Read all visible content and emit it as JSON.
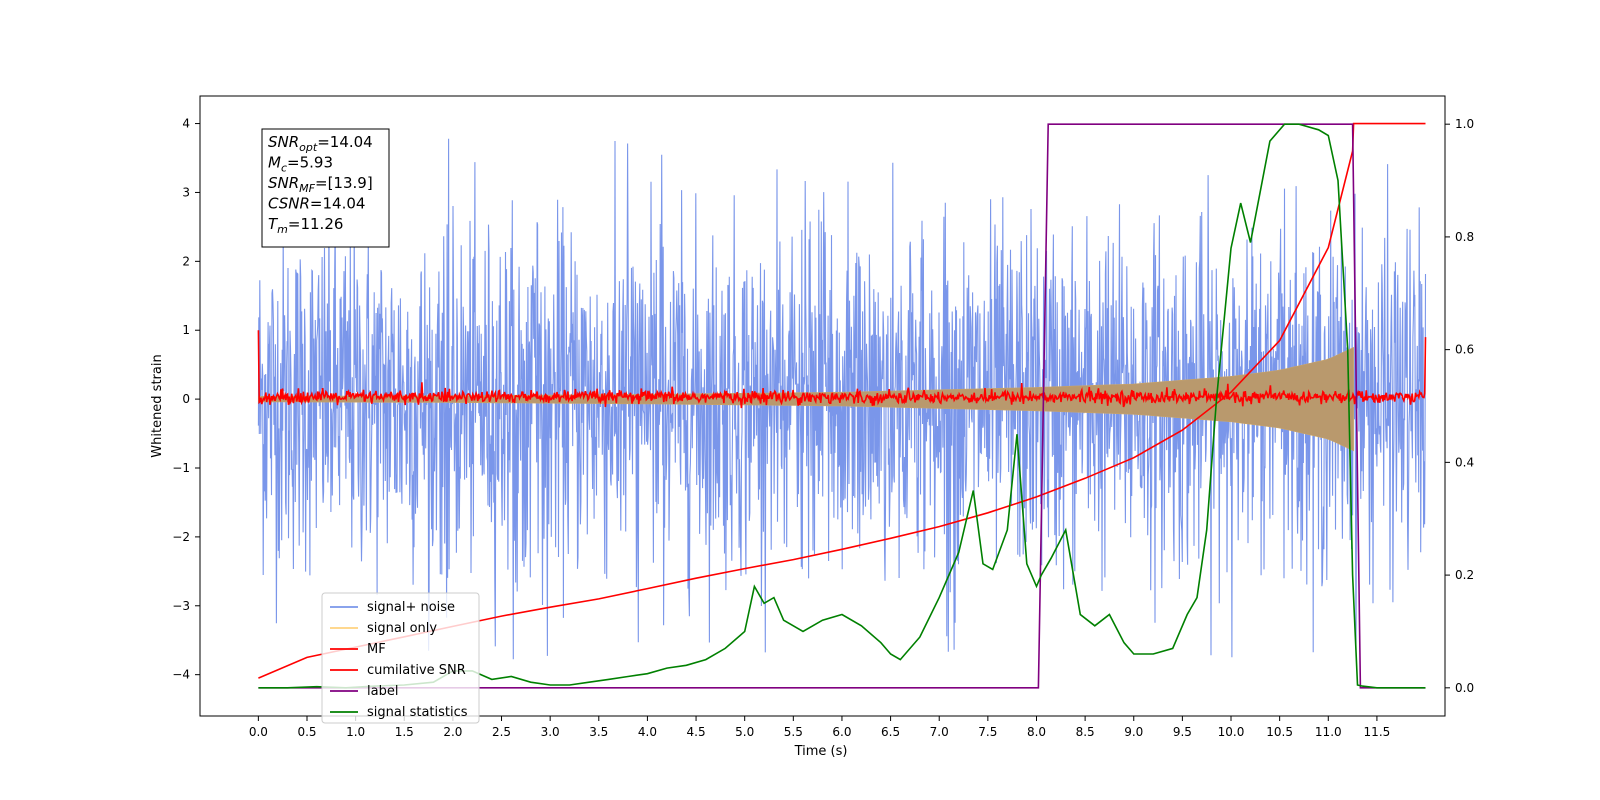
{
  "chart_data": {
    "type": "line",
    "title": "",
    "xlabel": "Time (s)",
    "ylabel": "Whitened strain",
    "xlim": [
      -0.6,
      12.2
    ],
    "ylim": [
      -4.6,
      4.4
    ],
    "y2lim": [
      -0.05,
      1.05
    ],
    "xticks": [
      "0.0",
      "0.5",
      "1.0",
      "1.5",
      "2.0",
      "2.5",
      "3.0",
      "3.5",
      "4.0",
      "4.5",
      "5.0",
      "5.5",
      "6.0",
      "6.5",
      "7.0",
      "7.5",
      "8.0",
      "8.5",
      "9.0",
      "9.5",
      "10.0",
      "10.5",
      "11.0",
      "11.5"
    ],
    "yticks": [
      "−4",
      "−3",
      "−2",
      "−1",
      "0",
      "1",
      "2",
      "3",
      "4"
    ],
    "y2ticks": [
      "0.0",
      "0.2",
      "0.4",
      "0.6",
      "0.8",
      "1.0"
    ],
    "grid": false,
    "legend_position": "bottom-left",
    "annotation": {
      "lines": [
        {
          "base": "SNR",
          "sub": "opt",
          "value": "=14.04"
        },
        {
          "base": "M",
          "sub": "c",
          "value": "=5.93"
        },
        {
          "base": "SNR",
          "sub": "MF",
          "value": "=[13.9]"
        },
        {
          "base": "CSNR",
          "sub": "",
          "value": "=14.04"
        },
        {
          "base": "T",
          "sub": "m",
          "value": "=11.26"
        }
      ]
    },
    "series": [
      {
        "name": "signal+ noise",
        "color": "#4169e1",
        "axis": "left",
        "kind": "noise",
        "amplitude_typical": 2.0,
        "amplitude_max": 3.8,
        "x_range": [
          0.0,
          12.0
        ]
      },
      {
        "name": "signal only",
        "color": "#ffd27f",
        "axis": "left",
        "kind": "chirp",
        "x": [
          0.0,
          2.0,
          4.0,
          6.0,
          8.0,
          9.0,
          10.0,
          10.5,
          11.0,
          11.26
        ],
        "envelope": [
          0.04,
          0.05,
          0.07,
          0.1,
          0.17,
          0.22,
          0.33,
          0.42,
          0.58,
          0.75
        ]
      },
      {
        "name": "MF",
        "color": "#ff0000",
        "axis": "left",
        "kind": "mf",
        "x_range": [
          0.0,
          12.0
        ],
        "baseline": 0.03,
        "spread": 0.08,
        "start_value": 1.0,
        "end_value": 0.9
      },
      {
        "name": "cumilative SNR",
        "color": "#ff0000",
        "axis": "left",
        "x": [
          0.0,
          0.5,
          1.0,
          1.5,
          2.0,
          2.5,
          3.0,
          3.5,
          4.0,
          4.5,
          5.0,
          5.5,
          6.0,
          6.5,
          7.0,
          7.5,
          8.0,
          8.5,
          9.0,
          9.5,
          10.0,
          10.5,
          11.0,
          11.25,
          11.26,
          12.0
        ],
        "y": [
          -4.05,
          -3.75,
          -3.6,
          -3.45,
          -3.3,
          -3.15,
          -3.02,
          -2.9,
          -2.75,
          -2.6,
          -2.46,
          -2.33,
          -2.18,
          -2.02,
          -1.85,
          -1.65,
          -1.42,
          -1.15,
          -0.85,
          -0.45,
          0.1,
          0.85,
          2.2,
          3.6,
          4.0,
          4.0
        ]
      },
      {
        "name": "label",
        "color": "#800080",
        "axis": "right",
        "x": [
          0.0,
          8.02,
          8.12,
          11.25,
          11.33,
          11.5,
          12.0
        ],
        "y": [
          0.0,
          0.0,
          1.0,
          1.0,
          0.0,
          0.0,
          0.0
        ]
      },
      {
        "name": "signal statistics",
        "color": "#008000",
        "axis": "right",
        "x": [
          0.0,
          0.3,
          0.6,
          0.9,
          1.2,
          1.5,
          1.8,
          2.0,
          2.2,
          2.4,
          2.6,
          2.8,
          3.0,
          3.2,
          3.4,
          3.6,
          3.8,
          4.0,
          4.2,
          4.4,
          4.6,
          4.8,
          5.0,
          5.1,
          5.2,
          5.3,
          5.4,
          5.5,
          5.6,
          5.8,
          6.0,
          6.2,
          6.4,
          6.5,
          6.6,
          6.8,
          7.0,
          7.2,
          7.35,
          7.45,
          7.55,
          7.7,
          7.8,
          7.9,
          8.0,
          8.05,
          8.15,
          8.3,
          8.45,
          8.6,
          8.75,
          8.9,
          9.0,
          9.2,
          9.4,
          9.55,
          9.65,
          9.75,
          9.85,
          10.0,
          10.1,
          10.2,
          10.3,
          10.4,
          10.55,
          10.7,
          10.9,
          11.0,
          11.1,
          11.2,
          11.25,
          11.3,
          11.35,
          11.5,
          12.0
        ],
        "y": [
          0.0,
          0.0,
          0.002,
          0.0,
          0.003,
          0.005,
          0.01,
          0.03,
          0.03,
          0.015,
          0.02,
          0.01,
          0.005,
          0.005,
          0.01,
          0.015,
          0.02,
          0.025,
          0.035,
          0.04,
          0.05,
          0.07,
          0.1,
          0.18,
          0.15,
          0.16,
          0.12,
          0.11,
          0.1,
          0.12,
          0.13,
          0.11,
          0.08,
          0.06,
          0.05,
          0.09,
          0.16,
          0.24,
          0.35,
          0.22,
          0.21,
          0.28,
          0.45,
          0.22,
          0.18,
          0.2,
          0.23,
          0.28,
          0.13,
          0.11,
          0.13,
          0.08,
          0.06,
          0.06,
          0.07,
          0.13,
          0.16,
          0.28,
          0.51,
          0.78,
          0.86,
          0.79,
          0.88,
          0.97,
          1.0,
          1.0,
          0.99,
          0.98,
          0.9,
          0.6,
          0.2,
          0.005,
          0.003,
          0.0,
          0.0
        ]
      }
    ]
  }
}
